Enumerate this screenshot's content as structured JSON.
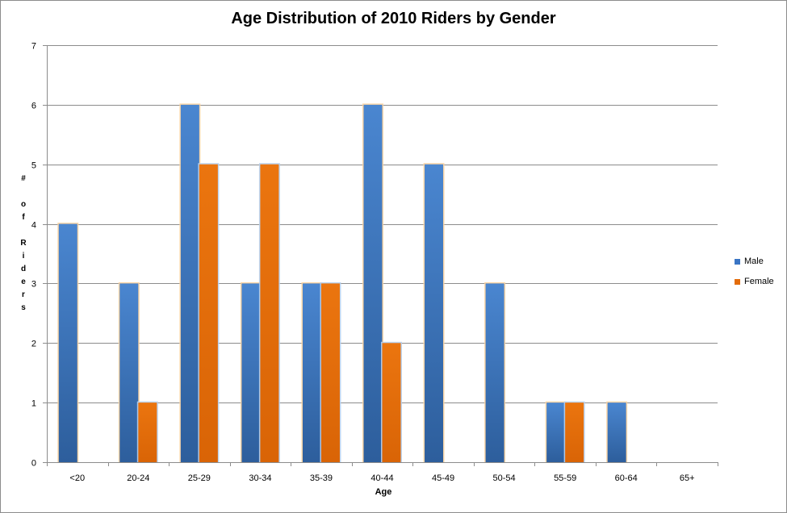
{
  "chart_data": {
    "type": "bar",
    "title": "Age Distribution of 2010 Riders by Gender",
    "xlabel": "Age",
    "ylabel": "# of Riders",
    "categories": [
      "<20",
      "20-24",
      "25-29",
      "30-34",
      "35-39",
      "40-44",
      "45-49",
      "50-54",
      "55-59",
      "60-64",
      "65+"
    ],
    "series": [
      {
        "name": "Male",
        "color": "#3a75c4",
        "values": [
          4,
          3,
          6,
          3,
          3,
          6,
          5,
          3,
          1,
          1,
          0
        ]
      },
      {
        "name": "Female",
        "color": "#e36c0a",
        "values": [
          0,
          1,
          5,
          5,
          3,
          2,
          0,
          0,
          1,
          0,
          0
        ]
      }
    ],
    "ylim": [
      0,
      7
    ],
    "yticks": [
      0,
      1,
      2,
      3,
      4,
      5,
      6,
      7
    ],
    "grid": true,
    "legend": "right"
  }
}
